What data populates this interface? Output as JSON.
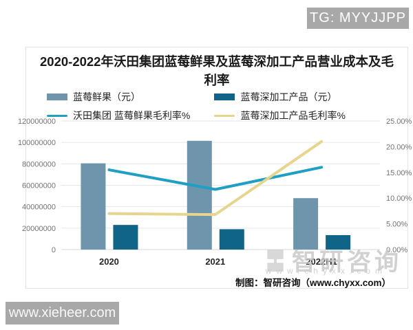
{
  "page": {
    "tg_badge": "TG: MYYJJPP",
    "site_watermark": "www.xieheer.com",
    "footer_credit": "制图：智研咨询（www.chyxx.com）",
    "brand_watermark": "智研咨询",
    "url_watermark": "www.chyxx.com",
    "colors": {
      "badge_gray": "#a8a8a8",
      "card_border": "#e3e3e3",
      "watermark_gray": "#c6c6c6"
    }
  },
  "chart_data": {
    "type": "bar+line",
    "title": "2020-2022年沃田集团蓝莓鲜果及蓝莓深加工产品营业成本及毛利率",
    "categories": [
      "2020",
      "2021",
      "2022H1"
    ],
    "series": [
      {
        "name": "蓝莓鲜果（元）",
        "type": "bar",
        "axis": "left",
        "color": "#6e95ab",
        "values": [
          80500000,
          101500000,
          48000000
        ]
      },
      {
        "name": "蓝莓深加工产品（元）",
        "type": "bar",
        "axis": "left",
        "color": "#0f6487",
        "values": [
          23000000,
          19000000,
          13500000
        ]
      },
      {
        "name": "沃田集团 蓝莓鲜果毛利率%",
        "type": "line",
        "axis": "right",
        "color": "#1f9fc4",
        "values": [
          15.5,
          11.7,
          16.0
        ]
      },
      {
        "name": "蓝莓深加工产品毛利率%",
        "type": "line",
        "axis": "right",
        "color": "#e7d48d",
        "values": [
          7.0,
          6.8,
          21.0
        ]
      }
    ],
    "left_axis": {
      "min": 0,
      "max": 120000000,
      "step": 20000000,
      "tick_labels": [
        "0",
        "20000000",
        "40000000",
        "60000000",
        "80000000",
        "100000000",
        "120000000"
      ]
    },
    "right_axis": {
      "min": 0,
      "max": 25,
      "step": 5,
      "tick_labels": [
        "0.00%",
        "5.00%",
        "10.00%",
        "15.00%",
        "20.00%",
        "25.00%"
      ]
    },
    "grid": true,
    "legend_position": "top"
  }
}
